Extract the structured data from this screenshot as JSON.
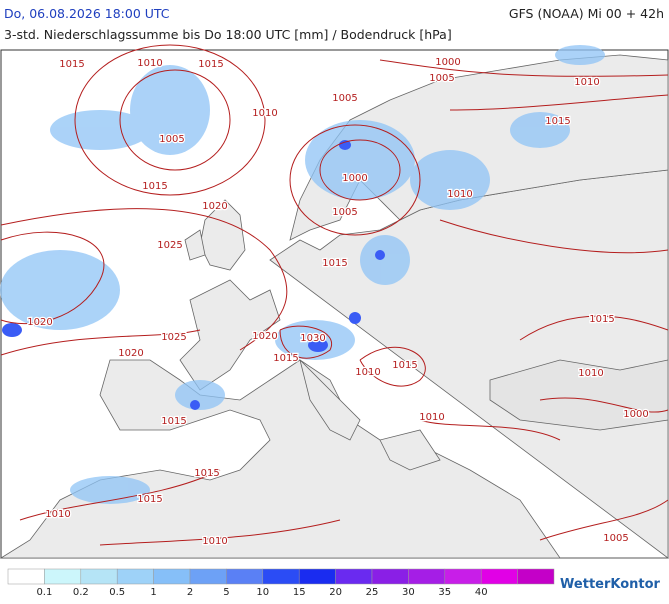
{
  "header": {
    "date": "Do, 06.08.2026 18:00 UTC",
    "model": "GFS (NOAA) Mi 00 + 42h",
    "subtitle": "3-std. Niederschlagssumme bis Do 18:00 UTC [mm] / Bodendruck [hPa]"
  },
  "isobar_labels": [
    1015,
    1010,
    1015,
    1005,
    1015,
    1010,
    1020,
    1025,
    1020,
    1025,
    1020,
    1020,
    1030,
    1015,
    1015,
    1015,
    1015,
    1010,
    1010,
    1005,
    1000,
    1005,
    1015,
    1000,
    1005,
    1010,
    1015,
    1010,
    1015,
    1010,
    1015,
    1010,
    1010,
    1000,
    1005
  ],
  "legend": {
    "colors": [
      "#ffffff",
      "#ccf6fb",
      "#b5e4f6",
      "#9ed2f8",
      "#86bff8",
      "#6da1f6",
      "#5a80f5",
      "#2b4cf5",
      "#1a2cf0",
      "#6a2af0",
      "#8a1fe6",
      "#a51ee6",
      "#c81ee8",
      "#e100e6",
      "#c400c8"
    ],
    "labels": [
      0.1,
      0.2,
      0.5,
      1,
      2,
      5,
      10,
      15,
      20,
      25,
      30,
      35,
      40
    ]
  },
  "brand": "WetterKontor"
}
